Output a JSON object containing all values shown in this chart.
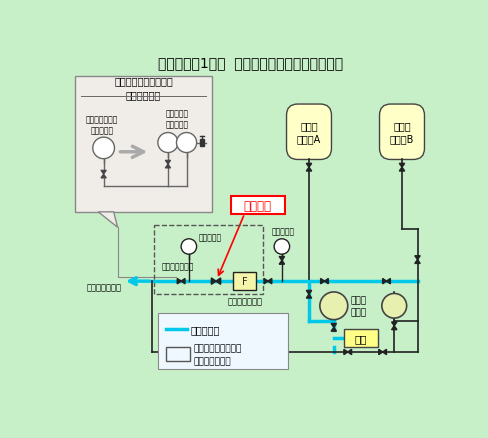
{
  "title": "伊方発電所1号機  ほう酸補給ライン系統概略図",
  "bg_color": "#c8f0c8",
  "title_fontsize": 10,
  "box_title": "耐圧検査用仮設圧力計\nの設置予定図",
  "inset_label1": "ほう酸フィルタ\n出口圧力計",
  "inset_label2": "耐圧検査用\n仮設圧力計",
  "label_tankA": "ほう酸\nタンクA",
  "label_tankB": "ほう酸\nタンクB",
  "label_filter": "ほう酸フィルタ",
  "label_pump": "ほう酸\nポンプ",
  "label_jyusui": "補水",
  "label_outlet_pressure": "出口圧力計",
  "label_inlet_pressure": "入口圧力計",
  "label_outlet_valve": "出口圧力計元弁",
  "label_fill_pump": "充てんポンプへ",
  "label_touchi": "当該箇所",
  "legend_water": "：水張系統",
  "legend_filter_range": "：フィルタ及び配管\n　取替工事範囲",
  "cyan_color": "#00c8e8",
  "red_color": "#ff0000",
  "line_color": "#222222",
  "tank_color": "#ffffc8",
  "pump_color": "#e8f0b0",
  "jyusui_color": "#ffff88",
  "inset_bg": "#f0ede8",
  "legend_bg": "#f0f8ff"
}
